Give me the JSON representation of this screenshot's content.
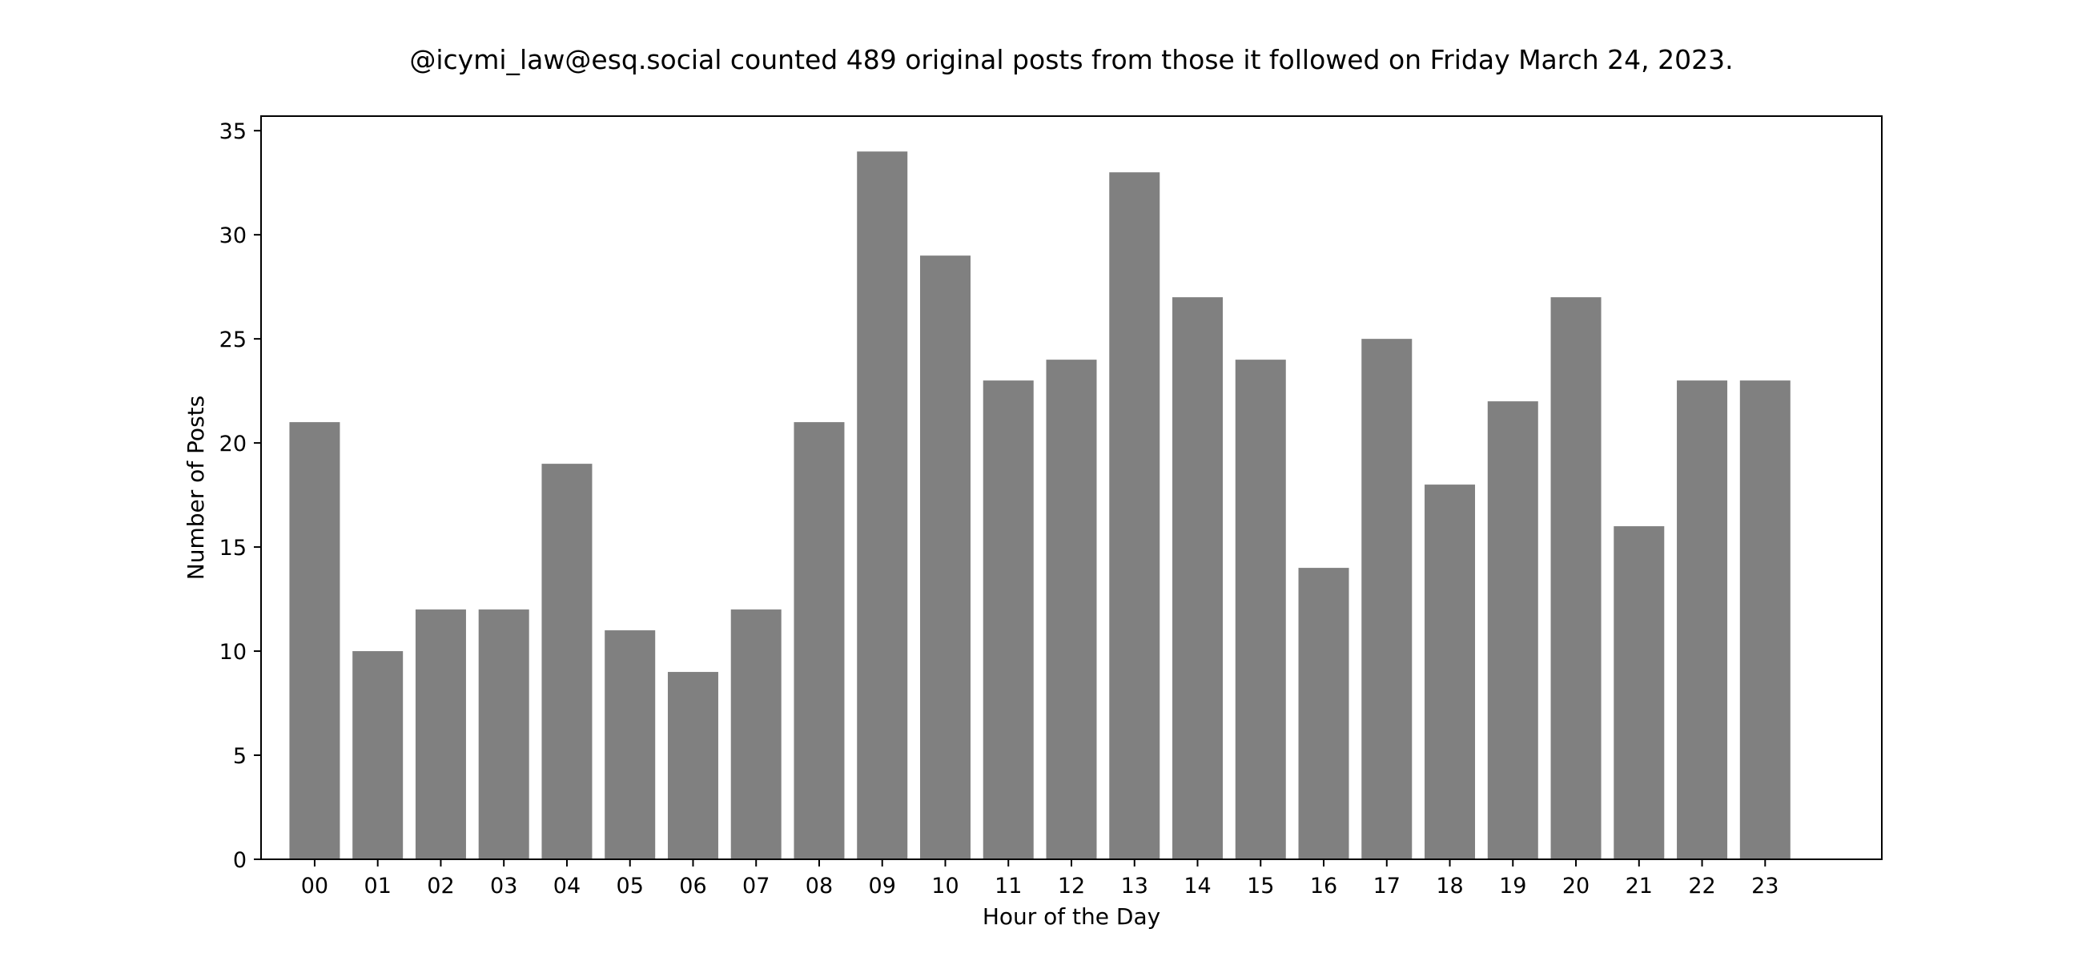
{
  "chart_data": {
    "type": "bar",
    "title": "@icymi_law@esq.social counted 489 original posts from those it followed on Friday March 24, 2023.",
    "xlabel": "Hour of the Day",
    "ylabel": "Number of Posts",
    "categories": [
      "00",
      "01",
      "02",
      "03",
      "04",
      "05",
      "06",
      "07",
      "08",
      "09",
      "10",
      "11",
      "12",
      "13",
      "14",
      "15",
      "16",
      "17",
      "18",
      "19",
      "20",
      "21",
      "22",
      "23"
    ],
    "values": [
      21,
      10,
      12,
      12,
      19,
      11,
      9,
      12,
      21,
      34,
      29,
      23,
      24,
      33,
      27,
      24,
      14,
      25,
      18,
      22,
      27,
      16,
      23,
      23
    ],
    "ylim": [
      0,
      35.7
    ],
    "yticks": [
      0,
      5,
      10,
      15,
      20,
      25,
      30,
      35
    ],
    "bar_color": "#808080",
    "grid": false,
    "legend": "none"
  }
}
